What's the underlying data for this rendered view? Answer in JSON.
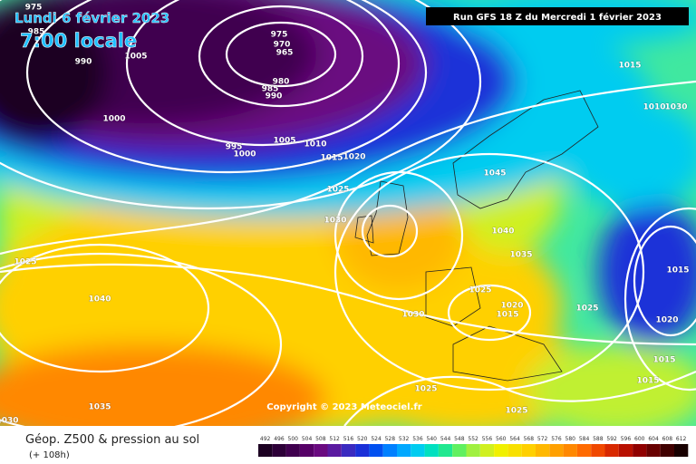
{
  "header": {
    "date": "Lundi 6 février 2023",
    "time": "7:00 locale",
    "run": "Run GFS 18 Z du Mercredi 1 février 2023"
  },
  "copyright": "Copyright © 2023 Meteociel.fr",
  "footer": {
    "title": "Géop. Z500 & pression au sol",
    "lead": "(+ 108h)"
  },
  "isobar_labels": [
    975,
    985,
    990,
    1005,
    975,
    970,
    965,
    980,
    985,
    990,
    1000,
    995,
    1000,
    1005,
    1010,
    1015,
    1020,
    1025,
    1030,
    1045,
    1040,
    1035,
    1025,
    1020,
    1015,
    1025,
    1030,
    1040,
    1025,
    1035,
    1030,
    1025,
    1025,
    1015,
    1010,
    1030,
    1015,
    1020,
    1015,
    1015
  ],
  "colorbar": {
    "values": [
      492,
      496,
      500,
      504,
      508,
      512,
      516,
      520,
      524,
      528,
      532,
      536,
      540,
      544,
      548,
      552,
      556,
      560,
      564,
      568,
      572,
      576,
      580,
      584,
      588,
      592,
      596,
      600,
      604,
      608,
      612
    ],
    "colors": [
      "#1c0022",
      "#2d0038",
      "#40004f",
      "#560067",
      "#6a0a80",
      "#5a1aa0",
      "#3a2ac0",
      "#1a30d8",
      "#0050f0",
      "#0080ff",
      "#00a8ff",
      "#00ccf0",
      "#00e0c0",
      "#20e890",
      "#60f060",
      "#a0f040",
      "#d0f020",
      "#f0f000",
      "#f8e000",
      "#ffd000",
      "#ffb800",
      "#ffa000",
      "#ff8800",
      "#ff6a00",
      "#f04800",
      "#d82800",
      "#b81000",
      "#900000",
      "#680000",
      "#400000",
      "#180000"
    ]
  }
}
